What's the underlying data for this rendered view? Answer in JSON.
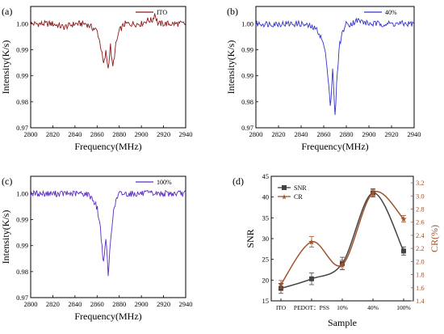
{
  "chart_data": [
    {
      "type": "line",
      "panel_label": "(a)",
      "xlabel": "Frequency(MHz)",
      "ylabel": "Intensity(K/s)",
      "xlim": [
        2800,
        2940
      ],
      "ylim": [
        0.97,
        1.005
      ],
      "xticks": [
        "2800",
        "2820",
        "2840",
        "2860",
        "2880",
        "2900",
        "2920",
        "2940"
      ],
      "yticks": [
        "0.97",
        "0.98",
        "0.99",
        "0.99",
        "1.00"
      ],
      "legend": "ITO",
      "legend_position": "top-right",
      "series": [
        {
          "name": "ITO",
          "color": "#8b1a1a",
          "x": [
            2800,
            2810,
            2820,
            2830,
            2840,
            2850,
            2855,
            2860,
            2863,
            2866,
            2868,
            2870,
            2872,
            2874,
            2877,
            2880,
            2885,
            2890,
            2900,
            2905,
            2910,
            2912,
            2915,
            2920,
            2930,
            2940
          ],
          "y": [
            1.0,
            1.0,
            1.0,
            0.999,
            1.0,
            1.0,
            0.999,
            0.998,
            0.994,
            0.988,
            0.992,
            0.987,
            0.994,
            0.987,
            0.994,
            0.998,
            1.0,
            1.0,
            1.0,
            1.001,
            1.001,
            1.003,
            1.0,
            1.0,
            1.0,
            1.0
          ]
        }
      ]
    },
    {
      "type": "line",
      "panel_label": "(b)",
      "xlabel": "Frequency(MHz)",
      "ylabel": "Intensity(K/s)",
      "xlim": [
        2800,
        2940
      ],
      "ylim": [
        0.97,
        1.005
      ],
      "xticks": [
        "2800",
        "2820",
        "2840",
        "2860",
        "2880",
        "2900",
        "2920",
        "2940"
      ],
      "yticks": [
        "0.97",
        "0.98",
        "0.99",
        "0.99",
        "1.00"
      ],
      "legend": "40%",
      "legend_position": "top-right",
      "series": [
        {
          "name": "40%",
          "color": "#3333cc",
          "x": [
            2800,
            2820,
            2840,
            2850,
            2855,
            2860,
            2863,
            2866,
            2868,
            2870,
            2872,
            2874,
            2877,
            2880,
            2884,
            2890,
            2900,
            2920,
            2940
          ],
          "y": [
            1.0,
            1.0,
            1.0,
            0.999,
            0.998,
            0.994,
            0.988,
            0.976,
            0.987,
            0.973,
            0.986,
            0.994,
            0.998,
            1.0,
            1.0,
            1.001,
            1.0,
            1.0,
            1.0
          ]
        }
      ]
    },
    {
      "type": "line",
      "panel_label": "(c)",
      "xlabel": "Frequency(MHz)",
      "ylabel": "Intensity(K/s)",
      "xlim": [
        2800,
        2940
      ],
      "ylim": [
        0.97,
        1.005
      ],
      "xticks": [
        "2800",
        "2820",
        "2840",
        "2860",
        "2880",
        "2900",
        "2920",
        "2940"
      ],
      "yticks": [
        "0.97",
        "0.98",
        "0.99",
        "0.99",
        "1.00"
      ],
      "legend": "100%",
      "legend_position": "top-right",
      "series": [
        {
          "name": "100%",
          "color": "#5b2dbf",
          "x": [
            2800,
            2820,
            2840,
            2850,
            2855,
            2860,
            2863,
            2866,
            2868,
            2870,
            2872,
            2874,
            2877,
            2880,
            2884,
            2890,
            2900,
            2920,
            2940
          ],
          "y": [
            1.0,
            1.0,
            1.0,
            1.0,
            0.999,
            0.996,
            0.99,
            0.979,
            0.988,
            0.976,
            0.986,
            0.993,
            0.998,
            1.0,
            1.0,
            1.0,
            1.0,
            1.0,
            1.0
          ]
        }
      ]
    },
    {
      "type": "line",
      "panel_label": "(d)",
      "xlabel": "Sample",
      "ylabel": "SNR",
      "y2label": "CR(%)",
      "categories": [
        "ITO",
        "PEDOT：PSS",
        "10%",
        "40%",
        "100%"
      ],
      "ylim": [
        15,
        45
      ],
      "yticks": [
        "15",
        "20",
        "25",
        "30",
        "35",
        "40",
        "45"
      ],
      "y2lim": [
        1.4,
        3.3
      ],
      "y2ticks": [
        "1.4",
        "1.6",
        "1.8",
        "2.0",
        "2.2",
        "2.4",
        "2.6",
        "2.8",
        "3.0",
        "3.2"
      ],
      "legend_position": "top-left",
      "series": [
        {
          "name": "SNR",
          "color": "#444444",
          "marker": "square",
          "axis": "left",
          "values": [
            18,
            20.3,
            24,
            41,
            27
          ],
          "errors": [
            1.2,
            1.4,
            1.5,
            1.0,
            1.0
          ]
        },
        {
          "name": "CR",
          "color": "#a0522d",
          "marker": "star",
          "axis": "right",
          "values": [
            1.65,
            2.3,
            1.95,
            3.05,
            2.65
          ],
          "errors": [
            0.06,
            0.08,
            0.07,
            0.05,
            0.05
          ]
        }
      ]
    }
  ]
}
